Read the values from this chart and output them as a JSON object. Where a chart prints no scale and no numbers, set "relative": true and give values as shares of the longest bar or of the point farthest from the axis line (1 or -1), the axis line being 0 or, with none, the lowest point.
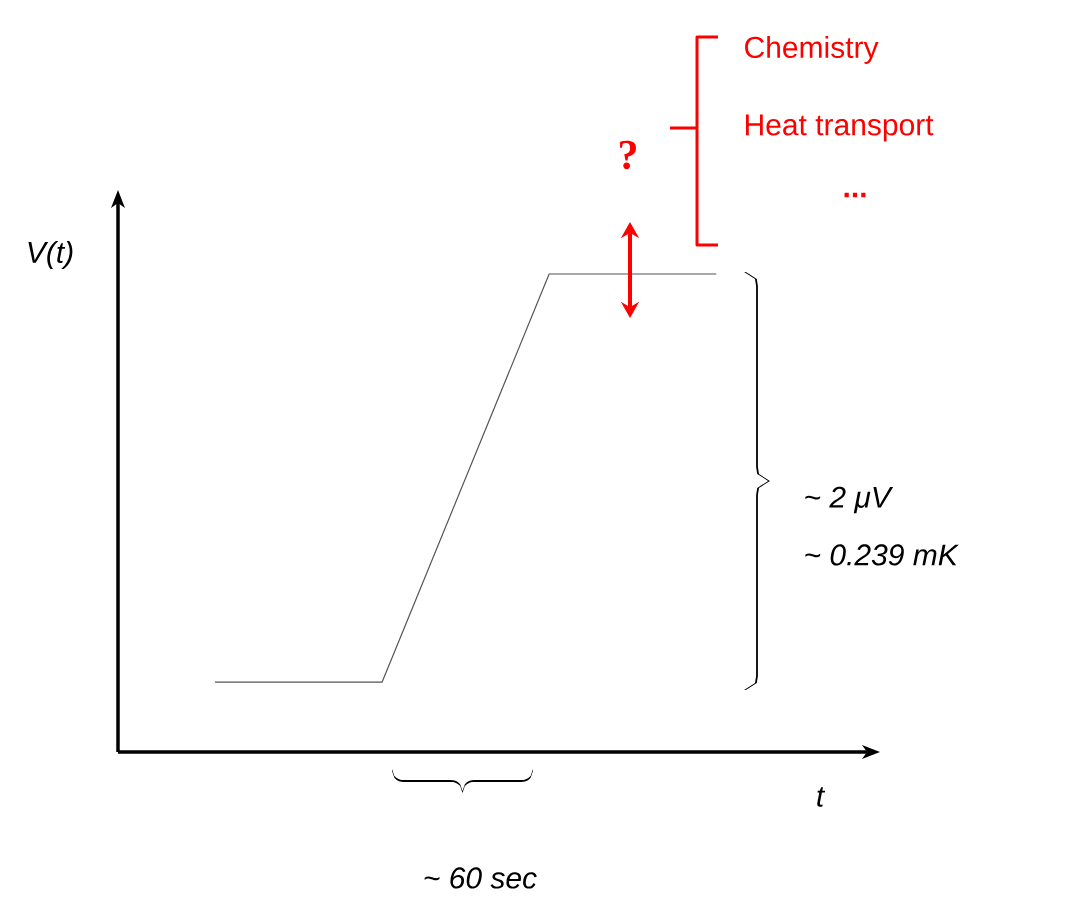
{
  "chart_data": {
    "type": "line",
    "xlabel": "t",
    "ylabel": "V(t)",
    "categories": [
      null,
      null,
      null,
      null
    ],
    "values": [
      0.146,
      0.146,
      1,
      1
    ],
    "relative": true,
    "color": "#555555",
    "marker": "none",
    "line_style": "solid",
    "annotations": [
      "~ 2 μV",
      "~ 0.239 mK",
      "~ 60 sec",
      "?",
      "Chemistry",
      "Heat transport",
      "..."
    ]
  }
}
